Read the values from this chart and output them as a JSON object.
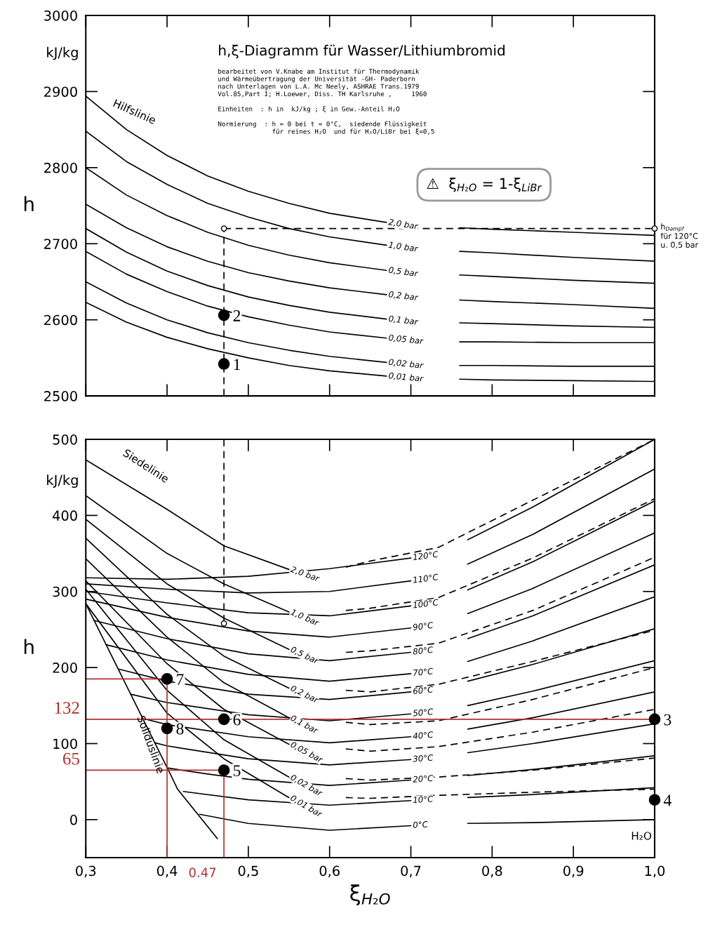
{
  "chart_data": [
    {
      "type": "line",
      "title": "h,ξ-Diagramm für Wasser/Lithiumbromid",
      "subtitle": "bearbeitet von V.Knabe am Institut für Thermodynamik\nund Wärmeübertragung der Universität -GH- Paderborn\nnach Unterlagen von L.A. Mc Neely, ASHRAE Trans.1979\nVol.85,Part I; H.Loewer, Diss. TH Karlsruhe ,     1960\n\nEinheiten  : h in  kJ/kg ; ξ in Gew.-Anteil H₂O\n\nNormierung  : h = 0 bei t = 0°C,  siedende Flüssigkeit\n              für reines H₂O  und für H₂O/LiBr bei ξ=0,5",
      "ylabel": "h",
      "annotations": [
        "kJ/kg",
        "⚠  ξ$_{H₂O}$ = 1-ξ$_{LiBr}$",
        "Hilfslinie",
        {
          "text": "h$_{Dampf}$\nfür 120°C\nu. 0,5 bar",
          "x": 1.0,
          "y": 2720
        },
        {
          "text": "1",
          "x": 0.47,
          "y": 2542
        },
        {
          "text": "2",
          "x": 0.47,
          "y": 2606
        }
      ],
      "xlim": [
        0.3,
        1.0
      ],
      "ylim": [
        2500,
        3000
      ],
      "xticks": [
        0.3,
        0.4,
        0.5,
        0.6,
        0.7,
        0.8,
        0.9,
        1.0
      ],
      "yticks": [
        2500,
        2600,
        2700,
        2800,
        2900,
        3000
      ],
      "tick_labels": "y",
      "series": [
        {
          "name": "2,0 bar",
          "color": "#000000",
          "x": [
            0.3,
            0.35,
            0.4,
            0.45,
            0.5,
            0.55,
            0.6,
            0.67
          ],
          "values": [
            2894,
            2850,
            2816,
            2789,
            2769,
            2753,
            2740,
            2728
          ]
        },
        {
          "color": "#000000",
          "x": [
            0.76,
            0.8,
            0.9,
            1.0
          ],
          "values": [
            2721,
            2719,
            2715,
            2711
          ]
        },
        {
          "name": "1,0 bar",
          "color": "#000000",
          "x": [
            0.3,
            0.35,
            0.4,
            0.45,
            0.5,
            0.55,
            0.6,
            0.67
          ],
          "values": [
            2848,
            2808,
            2778,
            2753,
            2735,
            2720,
            2709,
            2698
          ]
        },
        {
          "color": "#000000",
          "x": [
            0.76,
            0.8,
            0.9,
            1.0
          ],
          "values": [
            2690,
            2688,
            2682,
            2677
          ]
        },
        {
          "name": "0,5 bar",
          "color": "#000000",
          "x": [
            0.3,
            0.35,
            0.4,
            0.45,
            0.5,
            0.55,
            0.6,
            0.67
          ],
          "values": [
            2800,
            2764,
            2737,
            2715,
            2698,
            2685,
            2675,
            2665
          ]
        },
        {
          "color": "#000000",
          "x": [
            0.76,
            0.8,
            0.9,
            1.0
          ],
          "values": [
            2659,
            2657,
            2652,
            2648
          ]
        },
        {
          "name": "0,2 bar",
          "color": "#000000",
          "x": [
            0.3,
            0.35,
            0.4,
            0.45,
            0.5,
            0.55,
            0.6,
            0.67
          ],
          "values": [
            2752,
            2721,
            2696,
            2677,
            2662,
            2651,
            2642,
            2633
          ]
        },
        {
          "color": "#000000",
          "x": [
            0.76,
            0.8,
            0.9,
            1.0
          ],
          "values": [
            2626,
            2624,
            2620,
            2615
          ]
        },
        {
          "name": "0,1 bar",
          "color": "#000000",
          "x": [
            0.3,
            0.35,
            0.4,
            0.45,
            0.5,
            0.55,
            0.6,
            0.67
          ],
          "values": [
            2720,
            2689,
            2664,
            2645,
            2630,
            2619,
            2610,
            2601
          ]
        },
        {
          "color": "#000000",
          "x": [
            0.76,
            0.8,
            0.9,
            1.0
          ],
          "values": [
            2596,
            2595,
            2592,
            2590
          ]
        },
        {
          "name": "0,05 bar",
          "color": "#000000",
          "x": [
            0.3,
            0.35,
            0.4,
            0.45,
            0.5,
            0.55,
            0.6,
            0.67
          ],
          "values": [
            2690,
            2660,
            2637,
            2618,
            2604,
            2593,
            2584,
            2576
          ]
        },
        {
          "color": "#000000",
          "x": [
            0.76,
            0.8,
            0.9,
            1.0
          ],
          "values": [
            2571,
            2571,
            2570,
            2570
          ]
        },
        {
          "name": "0,02 bar",
          "color": "#000000",
          "x": [
            0.3,
            0.35,
            0.4,
            0.45,
            0.5,
            0.55,
            0.6,
            0.67
          ],
          "values": [
            2650,
            2622,
            2600,
            2583,
            2570,
            2560,
            2552,
            2544
          ]
        },
        {
          "color": "#000000",
          "x": [
            0.76,
            0.8,
            0.9,
            1.0
          ],
          "values": [
            2540,
            2540,
            2539,
            2539
          ]
        },
        {
          "name": "0,01 bar",
          "color": "#000000",
          "x": [
            0.3,
            0.35,
            0.4,
            0.45,
            0.5,
            0.55,
            0.6,
            0.67
          ],
          "values": [
            2623,
            2597,
            2577,
            2562,
            2550,
            2540,
            2533,
            2526
          ]
        },
        {
          "color": "#000000",
          "x": [
            0.76,
            0.8,
            0.9,
            1.0
          ],
          "values": [
            2522,
            2521,
            2520,
            2519
          ]
        },
        {
          "color": "#000000",
          "line_style": "dashed",
          "x": [
            0.47,
            0.47
          ],
          "values": [
            2500,
            2720
          ]
        },
        {
          "color": "#000000",
          "line_style": "dashed",
          "x": [
            0.47,
            1.0
          ],
          "values": [
            2720,
            2720
          ]
        },
        {
          "type": "scatter",
          "marker": "circle",
          "color": "#ffffff",
          "x": [
            0.47,
            1.0
          ],
          "values": [
            2720,
            2720
          ]
        },
        {
          "type": "scatter",
          "marker": "circle",
          "color": "#000000",
          "x": [
            0.47,
            0.47
          ],
          "values": [
            2542,
            2606
          ]
        }
      ]
    },
    {
      "type": "line",
      "xlabel": "ξ$_{H₂O}$",
      "ylabel": "h",
      "annotations": [
        "kJ/kg",
        "Siedelinie",
        "Soliduslinie",
        "H₂O",
        {
          "text": "3",
          "x": 1.0,
          "y": 132
        },
        {
          "text": "4",
          "x": 1.0,
          "y": 26
        },
        {
          "text": "5",
          "x": 0.47,
          "y": 65
        },
        {
          "text": "6",
          "x": 0.47,
          "y": 132
        },
        {
          "text": "7",
          "x": 0.4,
          "y": 185
        },
        {
          "text": "8",
          "x": 0.4,
          "y": 120
        },
        {
          "text": "132",
          "x": 0.3,
          "y": 132
        },
        {
          "text": "65",
          "x": 0.3,
          "y": 65
        },
        {
          "text": "0.47",
          "x": 0.47,
          "y": -50
        }
      ],
      "xlim": [
        0.3,
        1.0
      ],
      "ylim": [
        -50,
        500
      ],
      "xticks": [
        {
          "value": 0.3,
          "label": "0,3"
        },
        {
          "value": 0.4,
          "label": "0,4"
        },
        {
          "value": 0.5,
          "label": "0,5"
        },
        {
          "value": 0.6,
          "label": "0,6"
        },
        {
          "value": 0.7,
          "label": "0,7"
        },
        {
          "value": 0.8,
          "label": "0,8"
        },
        {
          "value": 0.9,
          "label": "0,9"
        },
        {
          "value": 1.0,
          "label": "1,0"
        }
      ],
      "yticks": [
        0,
        100,
        200,
        300,
        400,
        500
      ],
      "series": [
        {
          "name": "2,0 bar",
          "color": "#000000",
          "x": [
            0.3,
            0.4,
            0.47,
            0.55
          ],
          "values": [
            473,
            408,
            360,
            329
          ]
        },
        {
          "color": "#000000",
          "line_style": "dashed",
          "x": [
            0.62,
            0.65,
            0.734,
            0.85,
            1.0
          ],
          "values": [
            332,
            340,
            358,
            420,
            500
          ]
        },
        {
          "name": "1,0 bar",
          "color": "#000000",
          "x": [
            0.3,
            0.4,
            0.47,
            0.55
          ],
          "values": [
            426,
            350,
            310,
            273
          ]
        },
        {
          "color": "#000000",
          "line_style": "dashed",
          "x": [
            0.62,
            0.65,
            0.734,
            0.85,
            1.0
          ],
          "values": [
            275,
            278,
            292,
            344,
            422
          ]
        },
        {
          "name": "0,5 bar",
          "color": "#000000",
          "x": [
            0.3,
            0.4,
            0.47,
            0.55
          ],
          "values": [
            395,
            310,
            265,
            224
          ]
        },
        {
          "color": "#000000",
          "line_style": "dashed",
          "x": [
            0.62,
            0.65,
            0.734,
            0.85,
            1.0
          ],
          "values": [
            220,
            222,
            232,
            275,
            345
          ]
        },
        {
          "name": "0,2 bar",
          "color": "#000000",
          "x": [
            0.3,
            0.4,
            0.47,
            0.55
          ],
          "values": [
            370,
            270,
            215,
            173
          ]
        },
        {
          "color": "#000000",
          "line_style": "dashed",
          "x": [
            0.62,
            0.65,
            0.734,
            0.85,
            1.0
          ],
          "values": [
            170,
            168,
            178,
            208,
            249
          ]
        },
        {
          "name": "0,1 bar",
          "color": "#000000",
          "x": [
            0.3,
            0.4,
            0.47,
            0.55
          ],
          "values": [
            343,
            240,
            180,
            134
          ]
        },
        {
          "color": "#000000",
          "line_style": "dashed",
          "x": [
            0.62,
            0.65,
            0.734,
            0.85,
            1.0
          ],
          "values": [
            128,
            125,
            130,
            158,
            200
          ]
        },
        {
          "name": "0,05 bar",
          "color": "#000000",
          "x": [
            0.3,
            0.4,
            0.47,
            0.55
          ],
          "values": [
            314,
            205,
            145,
            99
          ]
        },
        {
          "color": "#000000",
          "line_style": "dashed",
          "x": [
            0.62,
            0.65,
            0.734,
            0.85,
            1.0
          ],
          "values": [
            93,
            90,
            96,
            115,
            145
          ]
        },
        {
          "name": "0,02 bar",
          "color": "#000000",
          "x": [
            0.3,
            0.4,
            0.47,
            0.55
          ],
          "values": [
            303,
            170,
            105,
            56
          ]
        },
        {
          "color": "#000000",
          "line_style": "dashed",
          "x": [
            0.62,
            0.65,
            0.734,
            0.85,
            1.0
          ],
          "values": [
            54,
            52,
            56,
            65,
            81
          ]
        },
        {
          "name": "0,01 bar",
          "color": "#000000",
          "x": [
            0.3,
            0.4,
            0.47,
            0.55
          ],
          "values": [
            284,
            140,
            80,
            29
          ]
        },
        {
          "color": "#000000",
          "line_style": "dashed",
          "x": [
            0.62,
            0.65,
            0.734,
            0.85,
            1.0
          ],
          "values": [
            29,
            28,
            32,
            36,
            40
          ]
        },
        {
          "name": "120°C",
          "color": "#000000",
          "x": [
            0.3,
            0.4,
            0.5,
            0.6,
            0.7
          ],
          "values": [
            318,
            316,
            320,
            330,
            344
          ]
        },
        {
          "color": "#000000",
          "x": [
            0.77,
            0.85,
            1.0
          ],
          "values": [
            368,
            411,
            500
          ]
        },
        {
          "name": "110°C",
          "color": "#000000",
          "x": [
            0.3,
            0.4,
            0.5,
            0.6,
            0.7
          ],
          "values": [
            310,
            303,
            298,
            300,
            314
          ]
        },
        {
          "color": "#000000",
          "x": [
            0.77,
            0.85,
            1.0
          ],
          "values": [
            336,
            375,
            461
          ]
        },
        {
          "name": "100°C",
          "color": "#000000",
          "x": [
            0.3,
            0.4,
            0.5,
            0.6,
            0.7
          ],
          "values": [
            300,
            285,
            272,
            268,
            281
          ]
        },
        {
          "color": "#000000",
          "x": [
            0.77,
            0.85,
            1.0
          ],
          "values": [
            302,
            339,
            419
          ]
        },
        {
          "name": "90°C",
          "color": "#000000",
          "x": [
            0.3,
            0.4,
            0.5,
            0.6,
            0.7
          ],
          "values": [
            290,
            266,
            248,
            240,
            252
          ]
        },
        {
          "color": "#000000",
          "x": [
            0.77,
            0.85,
            1.0
          ],
          "values": [
            271,
            304,
            377
          ]
        },
        {
          "name": "80°C",
          "color": "#000000",
          "x": [
            0.31,
            0.4,
            0.5,
            0.6,
            0.7
          ],
          "values": [
            262,
            238,
            218,
            209,
            220
          ]
        },
        {
          "color": "#000000",
          "x": [
            0.77,
            0.85,
            1.0
          ],
          "values": [
            238,
            268,
            335
          ]
        },
        {
          "name": "70°C",
          "color": "#000000",
          "x": [
            0.325,
            0.4,
            0.5,
            0.6,
            0.7
          ],
          "values": [
            230,
            210,
            191,
            182,
            192
          ]
        },
        {
          "color": "#000000",
          "x": [
            0.77,
            0.85,
            1.0
          ],
          "values": [
            208,
            235,
            293
          ]
        },
        {
          "name": "60°C",
          "color": "#000000",
          "x": [
            0.34,
            0.4,
            0.5,
            0.6,
            0.7
          ],
          "values": [
            198,
            182,
            165,
            158,
            168
          ]
        },
        {
          "color": "#000000",
          "x": [
            0.77,
            0.85,
            1.0
          ],
          "values": [
            182,
            204,
            251
          ]
        },
        {
          "name": "50°C",
          "color": "#000000",
          "x": [
            0.355,
            0.4,
            0.5,
            0.6,
            0.7
          ],
          "values": [
            165,
            154,
            138,
            130,
            139
          ]
        },
        {
          "color": "#000000",
          "x": [
            0.77,
            0.85,
            1.0
          ],
          "values": [
            150,
            169,
            209
          ]
        },
        {
          "name": "40°C",
          "color": "#000000",
          "x": [
            0.37,
            0.4,
            0.5,
            0.6,
            0.7
          ],
          "values": [
            133,
            125,
            109,
            101,
            109
          ]
        },
        {
          "color": "#000000",
          "x": [
            0.77,
            0.85,
            1.0
          ],
          "values": [
            119,
            134,
            168
          ]
        },
        {
          "name": "30°C",
          "color": "#000000",
          "x": [
            0.385,
            0.4,
            0.5,
            0.6,
            0.7
          ],
          "values": [
            101,
            97,
            80,
            72,
            79
          ]
        },
        {
          "color": "#000000",
          "x": [
            0.77,
            0.85,
            1.0
          ],
          "values": [
            88,
            100,
            126
          ]
        },
        {
          "name": "20°C",
          "color": "#000000",
          "x": [
            0.4,
            0.45,
            0.5,
            0.6,
            0.7
          ],
          "values": [
            68,
            60,
            53,
            45,
            52
          ]
        },
        {
          "color": "#000000",
          "x": [
            0.77,
            0.85,
            1.0
          ],
          "values": [
            58,
            66,
            84
          ]
        },
        {
          "name": "10°C",
          "color": "#000000",
          "x": [
            0.42,
            0.5,
            0.6,
            0.7
          ],
          "values": [
            37,
            26,
            19,
            25
          ]
        },
        {
          "color": "#000000",
          "x": [
            0.77,
            0.85,
            1.0
          ],
          "values": [
            29,
            33,
            42
          ]
        },
        {
          "name": "0°C",
          "color": "#000000",
          "x": [
            0.44,
            0.5,
            0.6,
            0.7
          ],
          "values": [
            7,
            -5,
            -14,
            -8
          ]
        },
        {
          "color": "#000000",
          "x": [
            0.77,
            0.85,
            1.0
          ],
          "values": [
            -5,
            -4,
            0
          ]
        },
        {
          "color": "#000000",
          "x": [
            0.3,
            0.403,
            0.413,
            0.462
          ],
          "values": [
            284,
            62,
            40,
            -25
          ]
        },
        {
          "color": "#000000",
          "line_style": "dashed",
          "x": [
            0.47,
            0.47
          ],
          "values": [
            500,
            258
          ]
        },
        {
          "type": "scatter",
          "marker": "circle",
          "color": "#ffffff",
          "x": [
            0.47
          ],
          "values": [
            258
          ]
        },
        {
          "color": "#b03030",
          "x": [
            0.3,
            0.4,
            0.4
          ],
          "values": [
            185,
            185,
            -50
          ]
        },
        {
          "color": "#b03030",
          "x": [
            0.3,
            1.0
          ],
          "values": [
            132,
            132
          ]
        },
        {
          "color": "#b03030",
          "x": [
            0.3,
            0.47,
            0.47
          ],
          "values": [
            65,
            65,
            -50
          ]
        },
        {
          "type": "scatter",
          "marker": "circle",
          "color": "#000000",
          "x": [
            1.0,
            1.0,
            0.47,
            0.47,
            0.4,
            0.4
          ],
          "values": [
            132,
            26,
            65,
            132,
            185,
            120
          ]
        }
      ]
    }
  ]
}
